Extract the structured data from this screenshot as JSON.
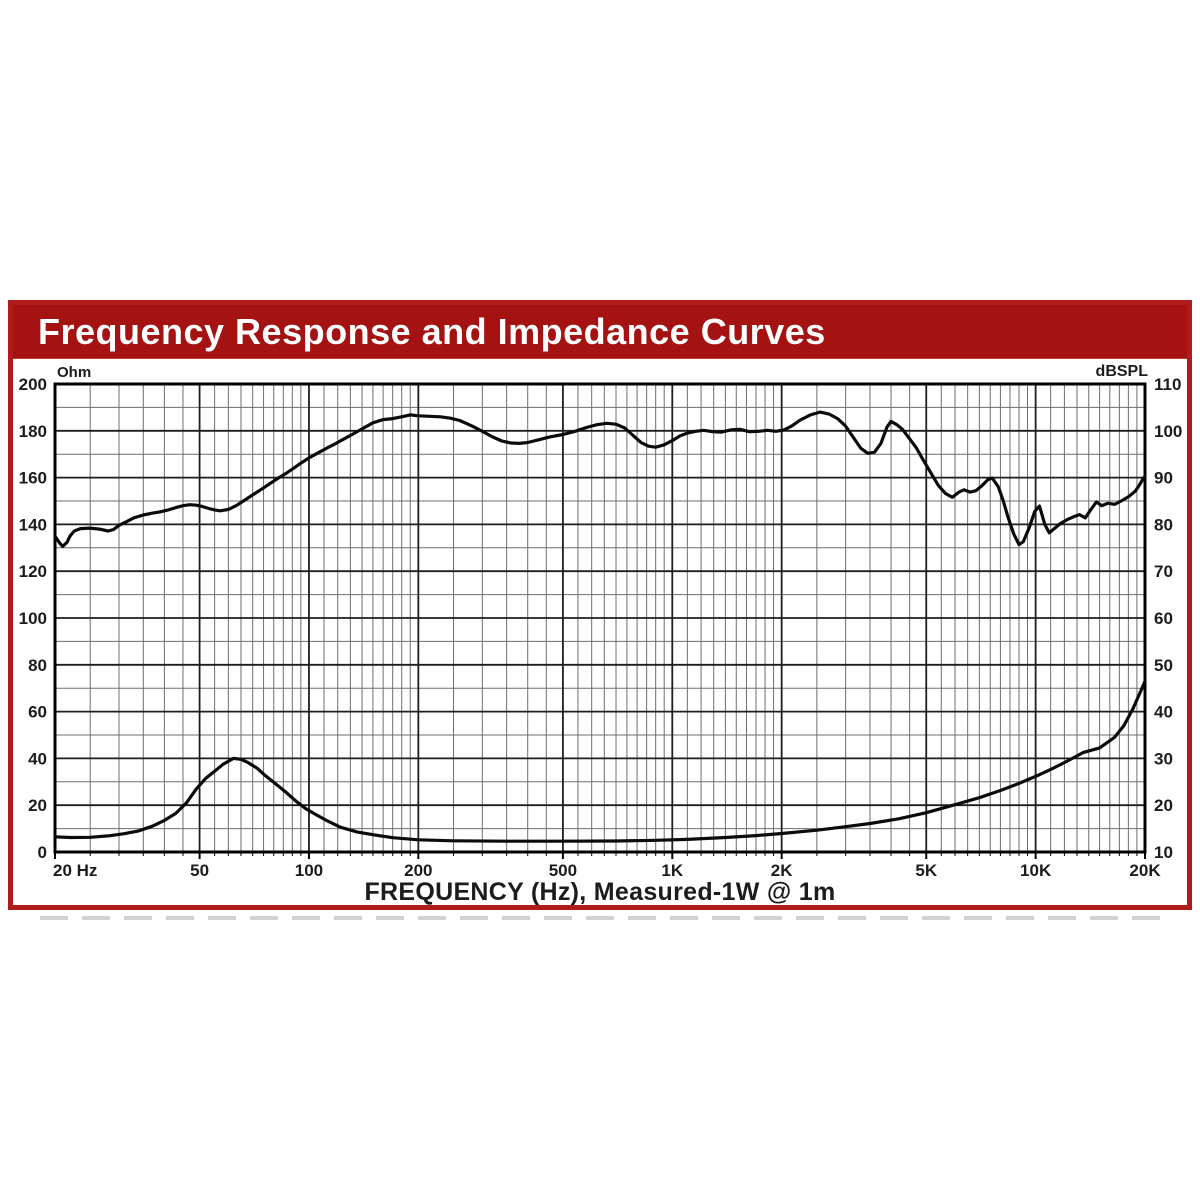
{
  "header": {
    "title": "Frequency Response and Impedance Curves"
  },
  "colors": {
    "header_bg": "#a41212",
    "frame_border": "#b01b1b",
    "title_text": "#ffffff",
    "grid_minor": "#6e6e6e",
    "grid_major": "#1e1e1e",
    "plot_border": "#000000",
    "curve": "#0b0b0b",
    "tick_text": "#1c1c1c"
  },
  "chart_data": {
    "type": "line",
    "title": "Frequency Response and Impedance Curves",
    "grid": "log-x full grid on",
    "x_axis": {
      "label": "FREQUENCY (Hz), Measured-1W @ 1m",
      "scale": "log",
      "min": 20,
      "max": 20000,
      "major_ticks": [
        20,
        50,
        100,
        200,
        500,
        1000,
        2000,
        5000,
        10000,
        20000
      ],
      "tick_labels": [
        "20 Hz",
        "50",
        "100",
        "200",
        "500",
        "1K",
        "2K",
        "5K",
        "10K",
        "20K"
      ]
    },
    "y_left": {
      "label": "Ohm",
      "min": 0,
      "max": 200,
      "major_step": 20,
      "minor_step": 10,
      "tick_labels": [
        "0",
        "20",
        "40",
        "60",
        "80",
        "100",
        "120",
        "140",
        "160",
        "180",
        "200"
      ]
    },
    "y_right": {
      "label": "dBSPL",
      "min": 10,
      "max": 110,
      "major_step": 10,
      "minor_step": 5,
      "tick_labels": [
        "10",
        "20",
        "30",
        "40",
        "50",
        "60",
        "70",
        "80",
        "90",
        "100",
        "110"
      ]
    },
    "series": [
      {
        "name": "frequency-response",
        "axis": "right",
        "unit": "dBSPL",
        "points": [
          [
            20,
            77.5
          ],
          [
            20.6,
            76
          ],
          [
            21,
            75.3
          ],
          [
            21.6,
            76.2
          ],
          [
            22,
            77.5
          ],
          [
            22.6,
            78.6
          ],
          [
            23.5,
            79.1
          ],
          [
            25,
            79.2
          ],
          [
            26.5,
            79
          ],
          [
            28,
            78.6
          ],
          [
            29,
            78.9
          ],
          [
            30,
            79.8
          ],
          [
            31.5,
            80.6
          ],
          [
            33,
            81.4
          ],
          [
            35,
            82
          ],
          [
            37,
            82.4
          ],
          [
            39,
            82.7
          ],
          [
            41,
            83.1
          ],
          [
            43,
            83.6
          ],
          [
            45,
            84
          ],
          [
            47,
            84.2
          ],
          [
            49,
            84.1
          ],
          [
            51,
            83.8
          ],
          [
            53,
            83.4
          ],
          [
            55,
            83.1
          ],
          [
            57,
            82.9
          ],
          [
            60,
            83.2
          ],
          [
            63,
            84
          ],
          [
            66,
            85
          ],
          [
            70,
            86.3
          ],
          [
            74,
            87.5
          ],
          [
            78,
            88.7
          ],
          [
            82,
            89.8
          ],
          [
            86,
            90.8
          ],
          [
            90,
            91.8
          ],
          [
            95,
            93.1
          ],
          [
            100,
            94.2
          ],
          [
            106,
            95.3
          ],
          [
            112,
            96.3
          ],
          [
            118,
            97.2
          ],
          [
            125,
            98.3
          ],
          [
            132,
            99.3
          ],
          [
            140,
            100.4
          ],
          [
            150,
            101.7
          ],
          [
            160,
            102.4
          ],
          [
            170,
            102.6
          ],
          [
            180,
            103
          ],
          [
            190,
            103.4
          ],
          [
            200,
            103.2
          ],
          [
            215,
            103.1
          ],
          [
            230,
            103
          ],
          [
            245,
            102.7
          ],
          [
            260,
            102.2
          ],
          [
            280,
            101.1
          ],
          [
            300,
            99.9
          ],
          [
            320,
            98.7
          ],
          [
            340,
            97.8
          ],
          [
            360,
            97.4
          ],
          [
            380,
            97.3
          ],
          [
            400,
            97.5
          ],
          [
            430,
            98.1
          ],
          [
            460,
            98.7
          ],
          [
            500,
            99.2
          ],
          [
            540,
            99.9
          ],
          [
            580,
            100.7
          ],
          [
            620,
            101.3
          ],
          [
            660,
            101.6
          ],
          [
            700,
            101.4
          ],
          [
            740,
            100.6
          ],
          [
            780,
            99
          ],
          [
            820,
            97.5
          ],
          [
            860,
            96.7
          ],
          [
            900,
            96.5
          ],
          [
            950,
            97
          ],
          [
            1000,
            97.9
          ],
          [
            1050,
            98.9
          ],
          [
            1100,
            99.5
          ],
          [
            1160,
            99.9
          ],
          [
            1220,
            100.1
          ],
          [
            1290,
            99.8
          ],
          [
            1360,
            99.7
          ],
          [
            1450,
            100.2
          ],
          [
            1540,
            100.3
          ],
          [
            1630,
            99.8
          ],
          [
            1730,
            99.9
          ],
          [
            1830,
            100.1
          ],
          [
            1930,
            99.9
          ],
          [
            2030,
            100.2
          ],
          [
            2130,
            101
          ],
          [
            2250,
            102.3
          ],
          [
            2400,
            103.4
          ],
          [
            2550,
            104
          ],
          [
            2700,
            103.6
          ],
          [
            2850,
            102.6
          ],
          [
            3000,
            101
          ],
          [
            3150,
            98.6
          ],
          [
            3300,
            96.3
          ],
          [
            3450,
            95.2
          ],
          [
            3600,
            95.4
          ],
          [
            3750,
            97.3
          ],
          [
            3900,
            100.8
          ],
          [
            4000,
            102
          ],
          [
            4150,
            101.3
          ],
          [
            4300,
            100.3
          ],
          [
            4500,
            98.3
          ],
          [
            4700,
            96.3
          ],
          [
            4900,
            93.8
          ],
          [
            5150,
            91
          ],
          [
            5400,
            88.3
          ],
          [
            5650,
            86.6
          ],
          [
            5900,
            85.8
          ],
          [
            6150,
            86.9
          ],
          [
            6350,
            87.4
          ],
          [
            6600,
            86.9
          ],
          [
            6850,
            87.2
          ],
          [
            7100,
            88.2
          ],
          [
            7400,
            89.6
          ],
          [
            7600,
            89.9
          ],
          [
            7900,
            88
          ],
          [
            8150,
            85
          ],
          [
            8400,
            81.5
          ],
          [
            8700,
            78
          ],
          [
            9000,
            75.7
          ],
          [
            9250,
            76.3
          ],
          [
            9600,
            79.3
          ],
          [
            9950,
            82.8
          ],
          [
            10250,
            83.9
          ],
          [
            10600,
            80
          ],
          [
            10900,
            78.2
          ],
          [
            11300,
            79.2
          ],
          [
            11700,
            80.2
          ],
          [
            12200,
            81
          ],
          [
            12700,
            81.6
          ],
          [
            13200,
            82.1
          ],
          [
            13700,
            81.4
          ],
          [
            14200,
            83.2
          ],
          [
            14700,
            84.8
          ],
          [
            15200,
            84
          ],
          [
            15800,
            84.5
          ],
          [
            16500,
            84.3
          ],
          [
            17200,
            85
          ],
          [
            18000,
            85.9
          ],
          [
            18800,
            87.1
          ],
          [
            19300,
            88.4
          ],
          [
            19700,
            89.6
          ],
          [
            20000,
            90.3
          ]
        ]
      },
      {
        "name": "impedance",
        "axis": "left",
        "unit": "Ohm",
        "points": [
          [
            20,
            6.5
          ],
          [
            22,
            6.2
          ],
          [
            25,
            6.3
          ],
          [
            28,
            6.9
          ],
          [
            31,
            7.8
          ],
          [
            34,
            9
          ],
          [
            37,
            11
          ],
          [
            40,
            13.5
          ],
          [
            43,
            16.5
          ],
          [
            46,
            21
          ],
          [
            49,
            27
          ],
          [
            52,
            31.5
          ],
          [
            55,
            34.5
          ],
          [
            58,
            37.5
          ],
          [
            62,
            40
          ],
          [
            65,
            39.6
          ],
          [
            68,
            38.2
          ],
          [
            72,
            35.8
          ],
          [
            76,
            32.5
          ],
          [
            80,
            29.8
          ],
          [
            86,
            25.8
          ],
          [
            92,
            21.8
          ],
          [
            98,
            18.5
          ],
          [
            104,
            16.2
          ],
          [
            112,
            13.4
          ],
          [
            122,
            10.6
          ],
          [
            136,
            8.5
          ],
          [
            150,
            7.4
          ],
          [
            170,
            6.1
          ],
          [
            200,
            5.2
          ],
          [
            250,
            4.8
          ],
          [
            350,
            4.6
          ],
          [
            500,
            4.6
          ],
          [
            700,
            4.7
          ],
          [
            900,
            5
          ],
          [
            1100,
            5.4
          ],
          [
            1400,
            6.2
          ],
          [
            1700,
            7
          ],
          [
            2000,
            7.9
          ],
          [
            2500,
            9.3
          ],
          [
            3000,
            10.8
          ],
          [
            3500,
            12.2
          ],
          [
            4200,
            14.2
          ],
          [
            5000,
            16.8
          ],
          [
            6000,
            20.2
          ],
          [
            7000,
            23.2
          ],
          [
            8000,
            26.3
          ],
          [
            9000,
            29.3
          ],
          [
            10000,
            32.3
          ],
          [
            11000,
            35.3
          ],
          [
            12000,
            38.2
          ],
          [
            13500,
            42.5
          ],
          [
            15000,
            44.5
          ],
          [
            16500,
            49
          ],
          [
            17500,
            54
          ],
          [
            18500,
            61
          ],
          [
            19500,
            69
          ],
          [
            20000,
            73
          ]
        ]
      }
    ]
  }
}
